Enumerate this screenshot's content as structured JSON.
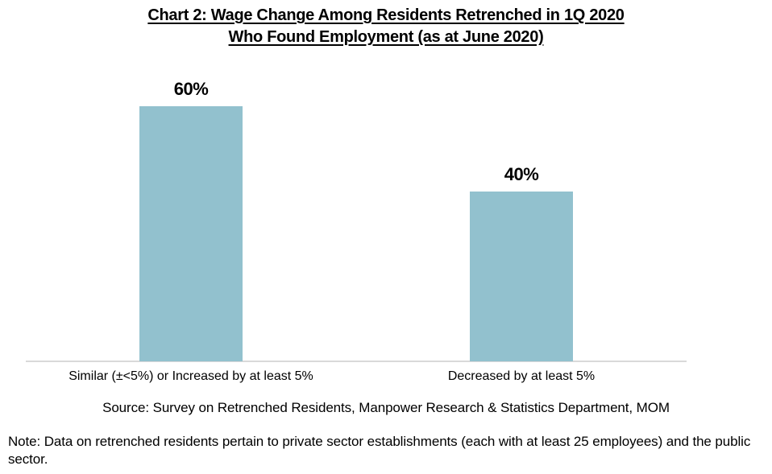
{
  "header": {
    "title_line1": "Chart 2: Wage Change Among Residents Retrenched in 1Q 2020",
    "title_line2": "Who Found Employment (as at June 2020)"
  },
  "chart_data": {
    "type": "bar",
    "title": "Chart 2: Wage Change Among Residents Retrenched in 1Q 2020 Who Found Employment (as at June 2020)",
    "categories": [
      "Similar (±<5%) or Increased by at least 5%",
      "Decreased by at least 5%"
    ],
    "values": [
      60,
      40
    ],
    "unit": "%",
    "bars": [
      {
        "category": "Similar (±<5%) or Increased by at least 5%",
        "value": 60,
        "label": "60%"
      },
      {
        "category": "Decreased by at least 5%",
        "value": 40,
        "label": "40%"
      }
    ],
    "xlabel": "",
    "ylabel": "",
    "ylim": [
      0,
      70
    ],
    "grid": false,
    "legend": false,
    "value_labels": "above bars",
    "bar_color": "#92C1CE",
    "axis_line_color": "#D9D9D9"
  },
  "footer": {
    "source": "Source: Survey on Retrenched Residents, Manpower Research & Statistics Department, MOM",
    "note": "Note: Data on retrenched residents pertain to private sector establishments (each with at least 25 employees) and the public sector."
  }
}
